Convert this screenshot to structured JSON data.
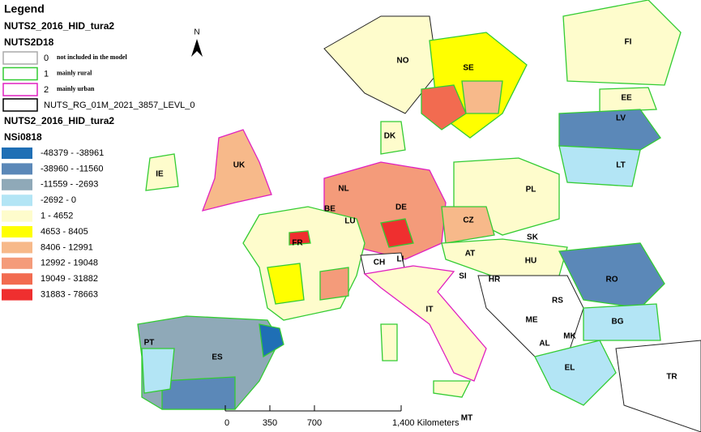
{
  "legend": {
    "title": "Legend",
    "layer1": "NUTS2_2016_HID_tura2",
    "field1": "NUTS2D18",
    "categories": [
      {
        "code": "0",
        "label": "not included in the model",
        "color": "#ffffff",
        "border": "#aaaaaa"
      },
      {
        "code": "1",
        "label": "mainly rural",
        "color": "#ffffff",
        "border": "#33cc33"
      },
      {
        "code": "2",
        "label": "mainly urban",
        "color": "#ffffff",
        "border": "#e020c0"
      }
    ],
    "boundary": "NUTS_RG_01M_2021_3857_LEVL_0",
    "layer2": "NUTS2_2016_HID_tura2",
    "field2": "NSi0818",
    "classes": [
      {
        "label": "-48379 - -38961",
        "color": "#1f6fb5"
      },
      {
        "label": "-38960 - -11560",
        "color": "#5b88b8"
      },
      {
        "label": "-11559 - -2693",
        "color": "#8fa9b8"
      },
      {
        "label": "-2692 - 0",
        "color": "#b3e5f5"
      },
      {
        "label": "1 - 4652",
        "color": "#fefccc"
      },
      {
        "label": "4653 - 8405",
        "color": "#ffff00"
      },
      {
        "label": "8406 - 12991",
        "color": "#f7b98a"
      },
      {
        "label": "12992 - 19048",
        "color": "#f49b7a"
      },
      {
        "label": "19049 - 31882",
        "color": "#f26b50"
      },
      {
        "label": "31883 - 78663",
        "color": "#ef2f2f"
      }
    ]
  },
  "map": {
    "north": "N",
    "labels": [
      "NO",
      "SE",
      "FI",
      "EE",
      "LV",
      "LT",
      "DK",
      "UK",
      "IE",
      "NL",
      "PL",
      "DE",
      "BE",
      "LU",
      "CZ",
      "SK",
      "FR",
      "CH",
      "LI",
      "AT",
      "HU",
      "SI",
      "HR",
      "RO",
      "RS",
      "IT",
      "ME",
      "BG",
      "MK",
      "AL",
      "PT",
      "ES",
      "EL",
      "TR",
      "MT"
    ]
  },
  "scale": {
    "ticks": [
      "0",
      "350",
      "700"
    ],
    "unit_label": "1,400 Kilometers"
  }
}
